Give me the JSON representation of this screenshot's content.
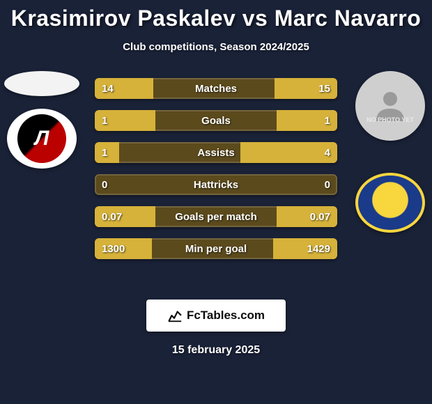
{
  "title": "Krasimirov Paskalev vs Marc Navarro",
  "subtitle": "Club competitions, Season 2024/2025",
  "date": "15 february 2025",
  "footer": {
    "brand": "FcTables.com"
  },
  "colors": {
    "background": "#1a2238",
    "bar_base": "#5b4a1c",
    "bar_left_accent": "#d6b23a",
    "bar_right_accent": "#d6b23a",
    "text": "#ffffff"
  },
  "left_player": {
    "club_initial": "Л",
    "club_bg": "#ffffff",
    "club_inner_gradient": [
      "#000000",
      "#b00000"
    ]
  },
  "right_player": {
    "placeholder_text": "NO PHOTO YET",
    "club_outer": "#f7d63e",
    "club_inner": "#1a3a8a"
  },
  "bars": [
    {
      "label": "Matches",
      "left": "14",
      "right": "15",
      "left_pct": 48,
      "right_pct": 52
    },
    {
      "label": "Goals",
      "left": "1",
      "right": "1",
      "left_pct": 50,
      "right_pct": 50
    },
    {
      "label": "Assists",
      "left": "1",
      "right": "4",
      "left_pct": 20,
      "right_pct": 80
    },
    {
      "label": "Hattricks",
      "left": "0",
      "right": "0",
      "left_pct": 0,
      "right_pct": 0
    },
    {
      "label": "Goals per match",
      "left": "0.07",
      "right": "0.07",
      "left_pct": 50,
      "right_pct": 50
    },
    {
      "label": "Min per goal",
      "left": "1300",
      "right": "1429",
      "left_pct": 47,
      "right_pct": 53
    }
  ],
  "bar_style": {
    "height": 30,
    "radius": 6,
    "gap": 16,
    "label_fontsize": 15,
    "value_fontsize": 15
  }
}
